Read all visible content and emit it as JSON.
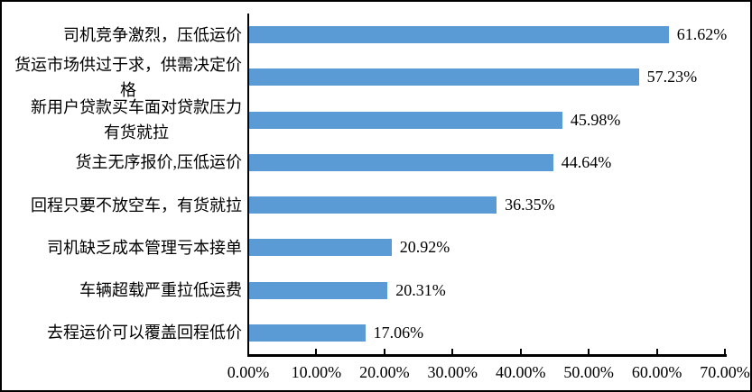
{
  "chart": {
    "bar_color": "#5B9BD5",
    "axis_color": "#000000",
    "text_color": "#000000",
    "border_color": "#000000"
  },
  "chart_data": {
    "type": "bar",
    "orientation": "horizontal",
    "title": "",
    "xlabel": "",
    "ylabel": "",
    "categories": [
      "司机竞争激烈，压低运价",
      "货运市场供过于求，供需决定价\n格",
      "新用户贷款买车面对贷款压力\n有货就拉",
      "货主无序报价,压低运价",
      "回程只要不放空车，有货就拉",
      "司机缺乏成本管理亏本接单",
      "车辆超载严重拉低运费",
      "去程运价可以覆盖回程低价"
    ],
    "values": [
      61.62,
      57.23,
      45.98,
      44.64,
      36.35,
      20.92,
      20.31,
      17.06
    ],
    "value_labels": [
      "61.62%",
      "57.23%",
      "45.98%",
      "44.64%",
      "36.35%",
      "20.92%",
      "20.31%",
      "17.06%"
    ],
    "x_ticks": [
      "0.00%",
      "10.00%",
      "20.00%",
      "30.00%",
      "40.00%",
      "50.00%",
      "60.00%",
      "70.00%"
    ],
    "xlim": [
      0,
      70
    ],
    "grid": false,
    "legend": false
  }
}
